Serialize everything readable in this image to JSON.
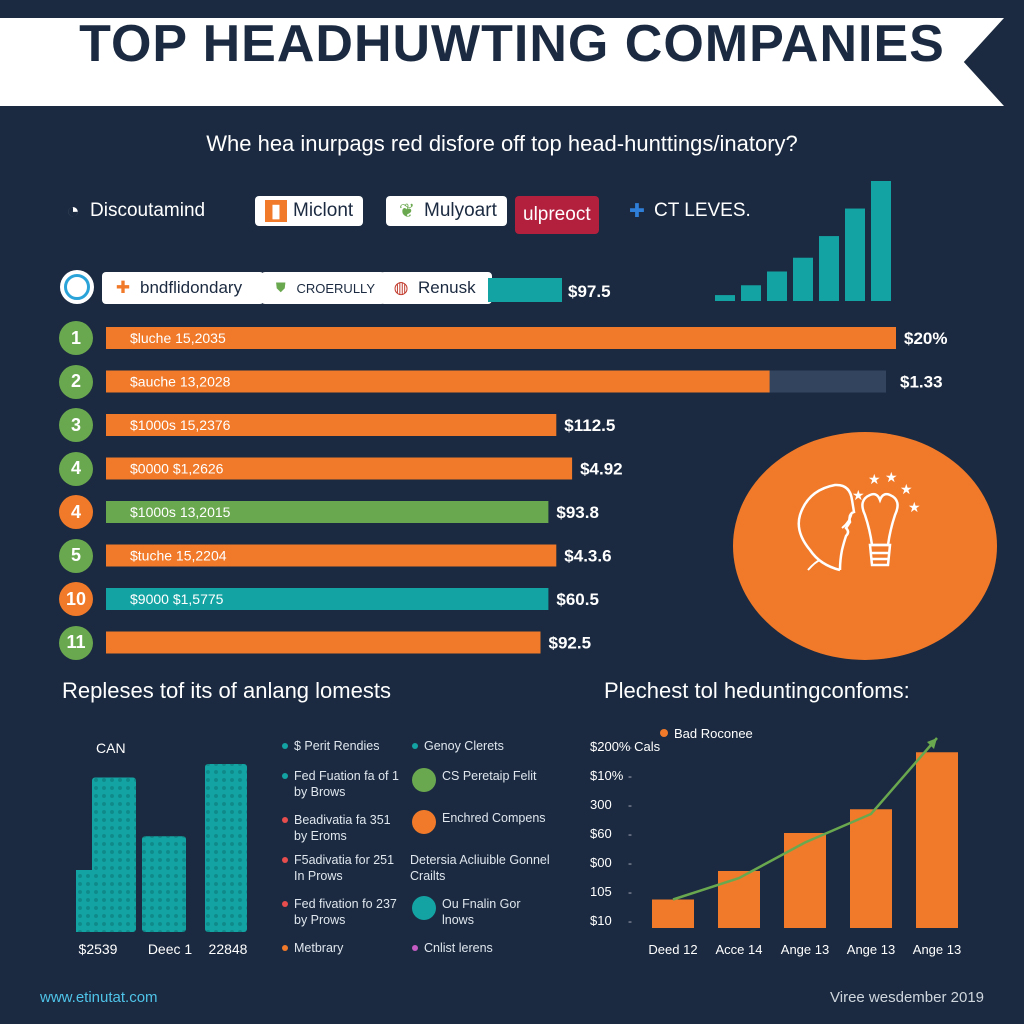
{
  "title": "TOP HEADHUWTING COMPANIES",
  "subtitle": "Whe hea inurpags red disfore off top head-hunttings/inatory?",
  "logos_row1": [
    {
      "name": "Discoutamind",
      "icon": "swirl-icon",
      "boxed": false
    },
    {
      "name": "Miclont",
      "icon": "orange-square-icon",
      "boxed": true
    },
    {
      "name": "Mulyoart",
      "icon": "leaf-icon",
      "boxed": true
    },
    {
      "name": "ulpreoct",
      "icon": "none",
      "boxed": true
    },
    {
      "name": "CT LEVES.",
      "icon": "blue-cross-icon",
      "boxed": false
    }
  ],
  "logos_row2": [
    {
      "name": "bndflidondary",
      "icon": "orange-plus-icon"
    },
    {
      "name": "CROERULLY",
      "icon": "green-shield-icon"
    },
    {
      "name": "Renusk",
      "icon": "globe-icon"
    }
  ],
  "top_bar_value": "$97.5",
  "colors": {
    "background": "#1b2a40",
    "orange": "#f07a2a",
    "green": "#6aa84f",
    "teal": "#14a3a3",
    "white": "#ffffff"
  },
  "chart_data": [
    {
      "type": "bar",
      "orientation": "horizontal",
      "categories": [
        "1",
        "2",
        "3",
        "4",
        "4",
        "5",
        "10",
        "11"
      ],
      "labels": [
        "$luche 15,2035",
        "$auche 13,2028",
        "$1000s 15,2376",
        "$0000 $1,2626",
        "$1000s 13,2015",
        "$tuche 15,2204",
        "$9000 $1,5775",
        ""
      ],
      "values": [
        100,
        84,
        57,
        59,
        56,
        57,
        56,
        55
      ],
      "value_labels": [
        "$20%",
        "$1.33",
        "$112.5",
        "$4.92",
        "$93.8",
        "$4.3.6",
        "$60.5",
        "$92.5"
      ],
      "bar_colors": [
        "#f07a2a",
        "#f07a2a",
        "#f07a2a",
        "#f07a2a",
        "#6aa84f",
        "#f07a2a",
        "#14a3a3",
        "#f07a2a"
      ],
      "circle_colors": [
        "#6aa84f",
        "#6aa84f",
        "#6aa84f",
        "#6aa84f",
        "#f07a2a",
        "#6aa84f",
        "#f07a2a",
        "#6aa84f"
      ]
    },
    {
      "type": "bar",
      "title": "Repleses tof its of anlang lomests",
      "ylabel": "CAN",
      "categories": [
        "$2539",
        "Deec 1",
        "22848"
      ],
      "values": [
        92,
        57,
        100
      ]
    },
    {
      "type": "bar",
      "title": "Plechest tol heduntingconfoms:",
      "legend": "Bad Roconee",
      "y_ticks": [
        "$10",
        "105",
        "$00",
        "$60",
        "300",
        "$10%",
        "$200% Cals"
      ],
      "categories": [
        "Deed 12",
        "Acce 14",
        "Ange 13",
        "Ange 13",
        "Ange 13"
      ],
      "values": [
        12,
        24,
        40,
        50,
        74
      ],
      "trend": [
        12,
        21,
        36,
        48,
        80
      ]
    },
    {
      "type": "bar",
      "values": [
        3,
        8,
        15,
        22,
        33,
        47,
        61
      ]
    }
  ],
  "legend_left": [
    {
      "text": "$ Perit Rendies",
      "color": "#14a3a3"
    },
    {
      "text": "Fed Fuation fa of 1 by Brows",
      "color": "#14a3a3"
    },
    {
      "text": "Beadivatia fa 351 by Eroms",
      "color": "#e84d4d"
    },
    {
      "text": "F5adivatia for 251 In Prows",
      "color": "#e84d4d"
    },
    {
      "text": "Fed fivation fo 237 by Prows",
      "color": "#e84d4d"
    },
    {
      "text": "Metbrary",
      "color": "#f07a2a"
    }
  ],
  "legend_right": [
    {
      "text": "Genoy Clerets",
      "color": "#14a3a3"
    },
    {
      "text": "CS Peretaip Felit",
      "color": "#6aa84f"
    },
    {
      "text": "Enchred Compens",
      "color": "#f07a2a"
    },
    {
      "text": "Detersia Acliuible Gonnel Crailts",
      "color": ""
    },
    {
      "text": "Ou Fnalin Gor lnows",
      "color": "#14a3a3"
    },
    {
      "text": "Cnlist lerens",
      "color": "#c45cc4"
    }
  ],
  "footer_left": "www.etinutat.com",
  "footer_right": "Viree wesdember 2019"
}
